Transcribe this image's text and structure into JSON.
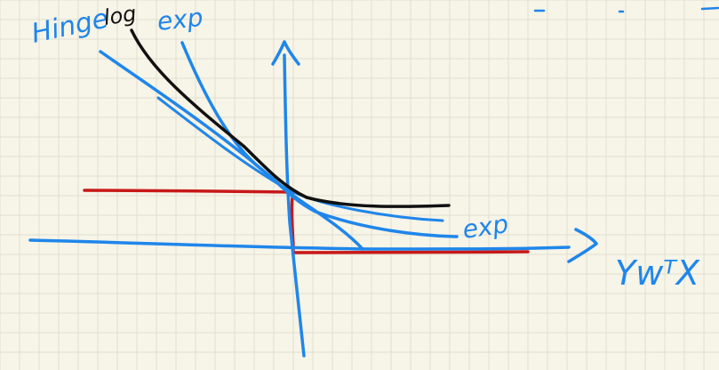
{
  "labels": {
    "hinge": "Hinge",
    "log": "log",
    "exp_top": "exp",
    "exp_right": "exp",
    "x_axis": "YwᵀX"
  },
  "colors": {
    "paper": "#f7f4e8",
    "grid": "#e2dfd0",
    "blue": "#1f86ea",
    "black": "#111111",
    "red": "#c81818"
  },
  "icons": {
    "x_axis_arrow": "chevron-right-arrow",
    "y_axis_arrow": "up-arrow"
  }
}
